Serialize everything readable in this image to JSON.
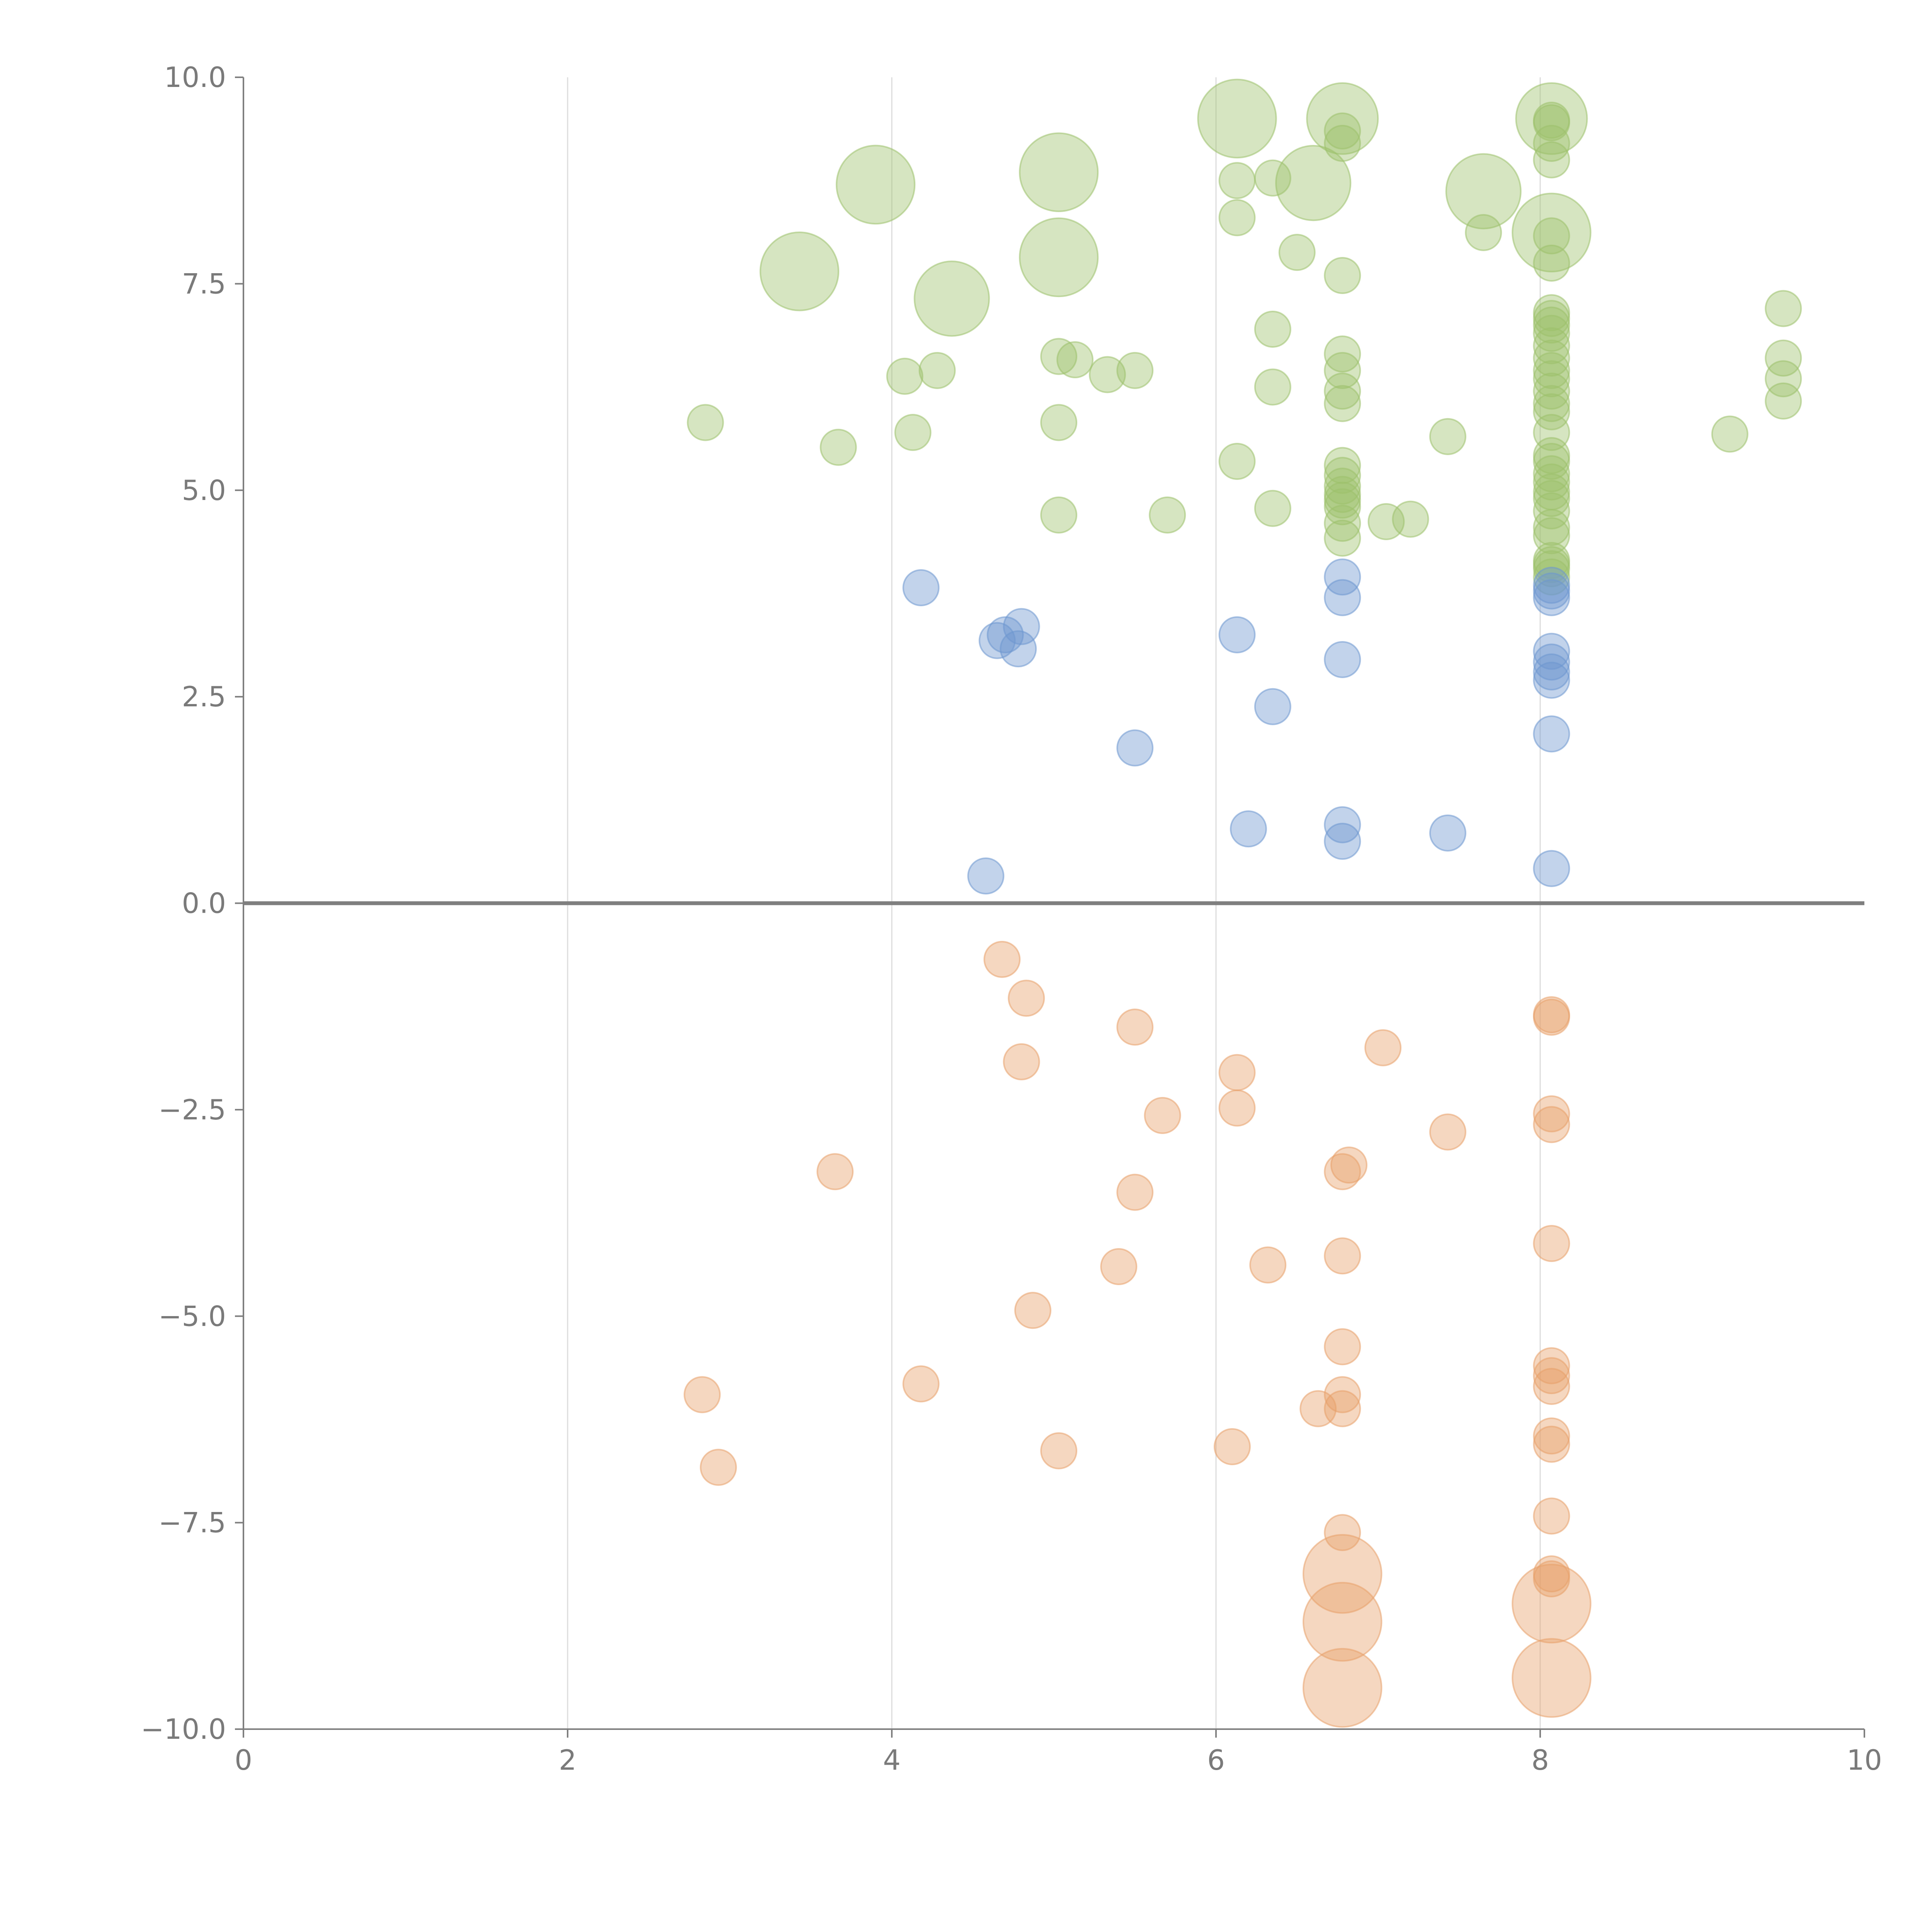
{
  "chart_data": {
    "type": "scatter",
    "title": "",
    "xlabel": "",
    "ylabel": "",
    "xlim": [
      0,
      10
    ],
    "ylim": [
      -10,
      10
    ],
    "x_ticks": [
      0,
      2,
      4,
      6,
      8,
      10
    ],
    "x_tick_labels": [
      "0",
      "2",
      "4",
      "6",
      "8",
      "10"
    ],
    "y_ticks": [
      10,
      7.5,
      5,
      2.5,
      0,
      -2.5,
      -5,
      -7.5,
      -10
    ],
    "y_tick_labels": [
      "10.0",
      "7.5",
      "5.0",
      "2.5",
      "0.0",
      "−2.5",
      "−5.0",
      "−7.5",
      "−10.0"
    ],
    "vertical_grid": true,
    "horizontal_grid": false,
    "zero_line": true,
    "legend": "none",
    "series": [
      {
        "color": "#9dc16b",
        "points": [
          [
            6.13,
            9.5,
            2.2
          ],
          [
            6.78,
            9.5,
            2.0
          ],
          [
            8.07,
            9.5,
            2.0
          ],
          [
            8.07,
            9.48,
            1
          ],
          [
            8.07,
            9.45,
            1
          ],
          [
            3.9,
            8.7,
            2.2
          ],
          [
            5.03,
            8.85,
            2.2
          ],
          [
            6.6,
            8.72,
            2.1
          ],
          [
            7.65,
            8.62,
            2.1
          ],
          [
            8.07,
            8.12,
            2.2
          ],
          [
            3.43,
            7.65,
            2.2
          ],
          [
            5.03,
            7.82,
            2.2
          ],
          [
            4.37,
            7.32,
            2.1
          ],
          [
            6.78,
            9.35,
            1
          ],
          [
            6.78,
            9.2,
            1
          ],
          [
            8.07,
            9.2,
            1
          ],
          [
            8.07,
            9.0,
            1
          ],
          [
            6.13,
            8.75,
            1
          ],
          [
            6.35,
            8.78,
            1
          ],
          [
            6.13,
            8.3,
            1
          ],
          [
            7.65,
            8.12,
            1
          ],
          [
            8.07,
            8.08,
            1
          ],
          [
            6.5,
            7.88,
            1
          ],
          [
            8.07,
            7.75,
            1
          ],
          [
            6.78,
            7.6,
            1
          ],
          [
            8.07,
            7.15,
            1
          ],
          [
            8.07,
            7.08,
            1
          ],
          [
            8.07,
            7.0,
            1
          ],
          [
            8.07,
            6.9,
            1
          ],
          [
            9.5,
            7.2,
            1
          ],
          [
            6.35,
            6.95,
            1
          ],
          [
            8.07,
            6.75,
            1
          ],
          [
            8.07,
            6.6,
            1
          ],
          [
            6.78,
            6.65,
            1
          ],
          [
            8.07,
            6.45,
            1
          ],
          [
            9.5,
            6.6,
            1
          ],
          [
            4.28,
            6.45,
            1
          ],
          [
            4.08,
            6.38,
            1
          ],
          [
            5.03,
            6.62,
            1
          ],
          [
            5.13,
            6.58,
            1
          ],
          [
            5.33,
            6.4,
            1
          ],
          [
            5.5,
            6.45,
            1
          ],
          [
            6.78,
            6.45,
            1
          ],
          [
            8.07,
            6.35,
            1
          ],
          [
            9.5,
            6.35,
            1
          ],
          [
            6.35,
            6.25,
            1
          ],
          [
            8.07,
            6.2,
            1
          ],
          [
            6.78,
            6.2,
            1
          ],
          [
            8.07,
            6.05,
            1
          ],
          [
            6.78,
            6.05,
            1
          ],
          [
            9.5,
            6.08,
            1
          ],
          [
            8.07,
            5.95,
            1
          ],
          [
            2.85,
            5.82,
            1
          ],
          [
            5.03,
            5.82,
            1
          ],
          [
            8.07,
            5.7,
            1
          ],
          [
            4.13,
            5.7,
            1
          ],
          [
            7.43,
            5.65,
            1
          ],
          [
            9.17,
            5.68,
            1
          ],
          [
            3.67,
            5.52,
            1
          ],
          [
            8.07,
            5.42,
            1
          ],
          [
            8.07,
            5.35,
            1
          ],
          [
            6.13,
            5.35,
            1
          ],
          [
            6.78,
            5.3,
            1
          ],
          [
            6.78,
            5.18,
            1
          ],
          [
            8.07,
            5.2,
            1
          ],
          [
            8.07,
            5.1,
            1
          ],
          [
            6.78,
            5.05,
            1
          ],
          [
            6.78,
            4.95,
            1
          ],
          [
            8.07,
            4.98,
            1
          ],
          [
            8.07,
            4.9,
            1
          ],
          [
            6.78,
            4.88,
            1
          ],
          [
            6.78,
            4.8,
            1
          ],
          [
            6.35,
            4.78,
            1
          ],
          [
            8.07,
            4.75,
            1
          ],
          [
            5.03,
            4.7,
            1
          ],
          [
            5.7,
            4.7,
            1
          ],
          [
            7.05,
            4.62,
            1
          ],
          [
            7.2,
            4.65,
            1
          ],
          [
            6.78,
            4.6,
            1
          ],
          [
            8.07,
            4.55,
            1
          ],
          [
            8.07,
            4.45,
            1
          ],
          [
            6.78,
            4.42,
            1
          ],
          [
            8.07,
            4.15,
            1
          ],
          [
            8.07,
            4.1,
            1
          ],
          [
            8.07,
            4.05,
            1
          ],
          [
            8.07,
            3.95,
            1
          ]
        ]
      },
      {
        "color": "#6e97d0",
        "points": [
          [
            4.18,
            3.82,
            1
          ],
          [
            4.8,
            3.35,
            1
          ],
          [
            4.7,
            3.25,
            1
          ],
          [
            4.65,
            3.18,
            1
          ],
          [
            4.78,
            3.08,
            1
          ],
          [
            6.78,
            3.95,
            1
          ],
          [
            6.78,
            3.7,
            1
          ],
          [
            8.07,
            3.85,
            1
          ],
          [
            8.07,
            3.78,
            1
          ],
          [
            8.07,
            3.7,
            1
          ],
          [
            6.13,
            3.25,
            1
          ],
          [
            8.07,
            3.05,
            1
          ],
          [
            8.07,
            2.92,
            1
          ],
          [
            8.07,
            2.8,
            1
          ],
          [
            8.07,
            2.7,
            1
          ],
          [
            6.78,
            2.95,
            1
          ],
          [
            6.35,
            2.38,
            1
          ],
          [
            8.07,
            2.05,
            1
          ],
          [
            5.5,
            1.88,
            1
          ],
          [
            6.2,
            0.9,
            1
          ],
          [
            6.78,
            0.95,
            1
          ],
          [
            6.78,
            0.75,
            1
          ],
          [
            7.43,
            0.85,
            1
          ],
          [
            8.07,
            0.42,
            1
          ],
          [
            4.58,
            0.33,
            1
          ]
        ]
      },
      {
        "color": "#e8a06a",
        "points": [
          [
            4.68,
            -0.68,
            1
          ],
          [
            4.83,
            -1.15,
            1
          ],
          [
            5.5,
            -1.5,
            1
          ],
          [
            8.07,
            -1.35,
            1
          ],
          [
            8.07,
            -1.38,
            1
          ],
          [
            4.8,
            -1.92,
            1
          ],
          [
            7.03,
            -1.75,
            1
          ],
          [
            6.13,
            -2.05,
            1
          ],
          [
            6.13,
            -2.48,
            1
          ],
          [
            5.67,
            -2.57,
            1
          ],
          [
            8.07,
            -2.55,
            1
          ],
          [
            8.07,
            -2.68,
            1
          ],
          [
            7.43,
            -2.77,
            1
          ],
          [
            3.65,
            -3.25,
            1
          ],
          [
            6.82,
            -3.17,
            1
          ],
          [
            6.78,
            -3.25,
            1
          ],
          [
            5.5,
            -3.5,
            1
          ],
          [
            8.07,
            -4.12,
            1
          ],
          [
            6.78,
            -4.27,
            1
          ],
          [
            5.4,
            -4.4,
            1
          ],
          [
            6.32,
            -4.38,
            1
          ],
          [
            4.87,
            -4.93,
            1
          ],
          [
            6.78,
            -5.37,
            1
          ],
          [
            8.07,
            -5.6,
            1
          ],
          [
            8.07,
            -5.72,
            1
          ],
          [
            8.07,
            -5.85,
            1
          ],
          [
            2.83,
            -5.95,
            1
          ],
          [
            4.18,
            -5.82,
            1
          ],
          [
            6.78,
            -5.95,
            1
          ],
          [
            6.78,
            -6.12,
            1
          ],
          [
            6.63,
            -6.12,
            1
          ],
          [
            8.07,
            -6.45,
            1
          ],
          [
            8.07,
            -6.55,
            1
          ],
          [
            6.1,
            -6.58,
            1
          ],
          [
            5.03,
            -6.63,
            1
          ],
          [
            2.93,
            -6.83,
            1
          ],
          [
            8.07,
            -7.42,
            1
          ],
          [
            6.78,
            -7.62,
            1
          ],
          [
            8.07,
            -8.12,
            1
          ],
          [
            8.07,
            -8.18,
            1
          ],
          [
            6.78,
            -8.12,
            2.2
          ],
          [
            6.78,
            -8.7,
            2.2
          ],
          [
            8.07,
            -8.48,
            2.2
          ],
          [
            8.07,
            -9.38,
            2.2
          ],
          [
            6.78,
            -9.5,
            2.2
          ]
        ]
      }
    ]
  }
}
